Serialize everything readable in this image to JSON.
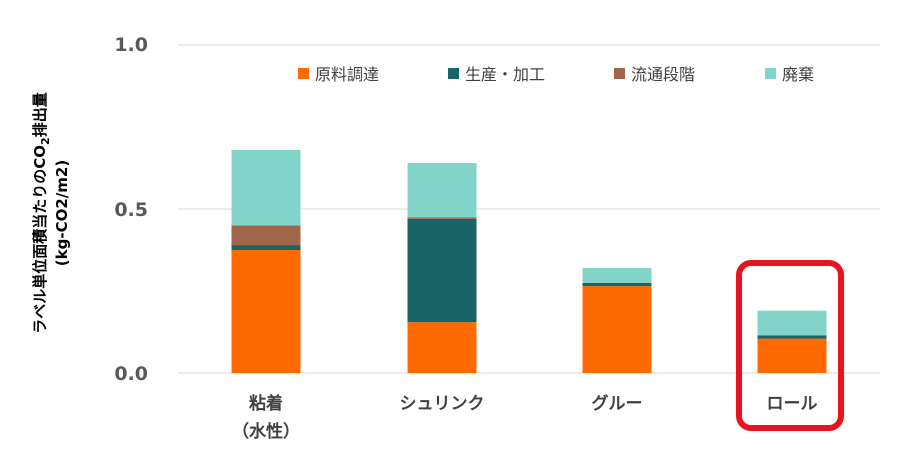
{
  "chart_data": {
    "type": "bar",
    "stacked": true,
    "categories": [
      "粘着",
      "シュリンク",
      "グルー",
      "ロール"
    ],
    "category_sublabels": [
      "（水性）",
      "",
      "",
      ""
    ],
    "series": [
      {
        "name": "原料調達",
        "values": [
          0.375,
          0.155,
          0.265,
          0.105
        ]
      },
      {
        "name": "生産・加工",
        "values": [
          0.015,
          0.315,
          0.01,
          0.01
        ]
      },
      {
        "name": "流通段階",
        "values": [
          0.06,
          0.005,
          0,
          0
        ]
      },
      {
        "name": "廃棄",
        "values": [
          0.23,
          0.165,
          0.045,
          0.075
        ]
      }
    ],
    "ylabel_line1": "ラベル単位面積当たりのCO",
    "ylabel_sub": "2",
    "ylabel_line1_end": "排出量",
    "ylabel_line2": "(kg-CO2/m2)",
    "yticks": [
      "0.0",
      "0.5",
      "1.0"
    ],
    "ylim": [
      0,
      1.0
    ],
    "grid": true,
    "legend_position": "top-right",
    "highlighted_category": "ロール"
  },
  "colors": {
    "series": [
      "#ff6a00",
      "#176566",
      "#a0664b",
      "#83d4c8"
    ],
    "grid": "#d9d9d9",
    "highlight": "#e8141d"
  }
}
